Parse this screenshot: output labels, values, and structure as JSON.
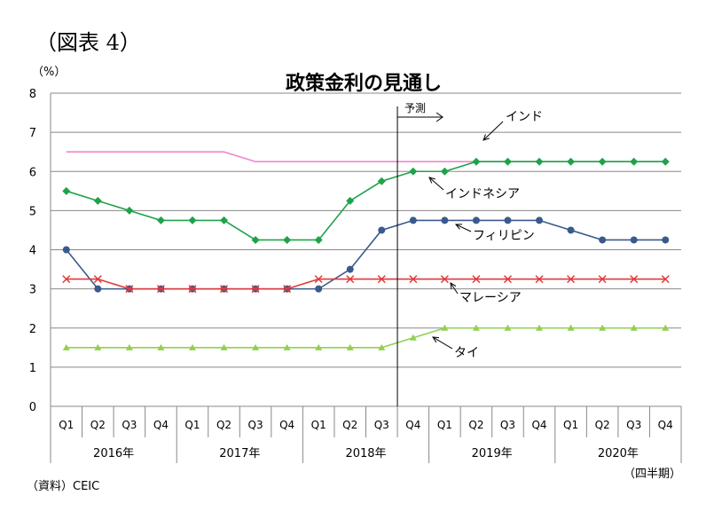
{
  "figure_label": "（図表 4）",
  "unit_label": "（%）",
  "source_note": "（資料）CEIC",
  "period_note": "（四半期）",
  "forecast_label": "予測",
  "chart_data": {
    "type": "line",
    "title": "政策金利の見通し",
    "xlabel": "",
    "ylabel": "（%）",
    "ylim": [
      0,
      8
    ],
    "yticks": [
      0,
      1,
      2,
      3,
      4,
      5,
      6,
      7,
      8
    ],
    "grid": true,
    "categories": [
      "Q1",
      "Q2",
      "Q3",
      "Q4",
      "Q1",
      "Q2",
      "Q3",
      "Q4",
      "Q1",
      "Q2",
      "Q3",
      "Q4",
      "Q1",
      "Q2",
      "Q3",
      "Q4",
      "Q1",
      "Q2",
      "Q3",
      "Q4"
    ],
    "year_groups": [
      {
        "label": "2016年",
        "start": 0,
        "end": 3
      },
      {
        "label": "2017年",
        "start": 4,
        "end": 7
      },
      {
        "label": "2018年",
        "start": 8,
        "end": 11
      },
      {
        "label": "2019年",
        "start": 12,
        "end": 15
      },
      {
        "label": "2020年",
        "start": 16,
        "end": 19
      }
    ],
    "forecast_start_index": 11,
    "series": [
      {
        "name": "インド",
        "color": "#ee88cc",
        "marker": "none",
        "values": [
          6.5,
          6.5,
          6.5,
          6.5,
          6.5,
          6.5,
          6.25,
          6.25,
          6.25,
          6.25,
          6.25,
          6.25,
          6.25,
          6.25,
          6.25,
          6.25,
          6.25,
          6.25,
          6.25,
          6.25
        ]
      },
      {
        "name": "インドネシア",
        "color": "#1fa24a",
        "marker": "diamond",
        "values": [
          5.5,
          5.25,
          5.0,
          4.75,
          4.75,
          4.75,
          4.25,
          4.25,
          4.25,
          5.25,
          5.75,
          6.0,
          6.0,
          6.25,
          6.25,
          6.25,
          6.25,
          6.25,
          6.25,
          6.25
        ]
      },
      {
        "name": "フィリピン",
        "color": "#3a5a8c",
        "marker": "circle",
        "values": [
          4.0,
          3.0,
          3.0,
          3.0,
          3.0,
          3.0,
          3.0,
          3.0,
          3.0,
          3.5,
          4.5,
          4.75,
          4.75,
          4.75,
          4.75,
          4.75,
          4.5,
          4.25,
          4.25,
          4.25
        ]
      },
      {
        "name": "マレーシア",
        "color": "#e03a3a",
        "marker": "x",
        "values": [
          3.25,
          3.25,
          3.0,
          3.0,
          3.0,
          3.0,
          3.0,
          3.0,
          3.25,
          3.25,
          3.25,
          3.25,
          3.25,
          3.25,
          3.25,
          3.25,
          3.25,
          3.25,
          3.25,
          3.25
        ]
      },
      {
        "name": "タイ",
        "color": "#92d050",
        "marker": "triangle",
        "values": [
          1.5,
          1.5,
          1.5,
          1.5,
          1.5,
          1.5,
          1.5,
          1.5,
          1.5,
          1.5,
          1.5,
          1.75,
          2.0,
          2.0,
          2.0,
          2.0,
          2.0,
          2.0,
          2.0,
          2.0
        ]
      }
    ]
  }
}
